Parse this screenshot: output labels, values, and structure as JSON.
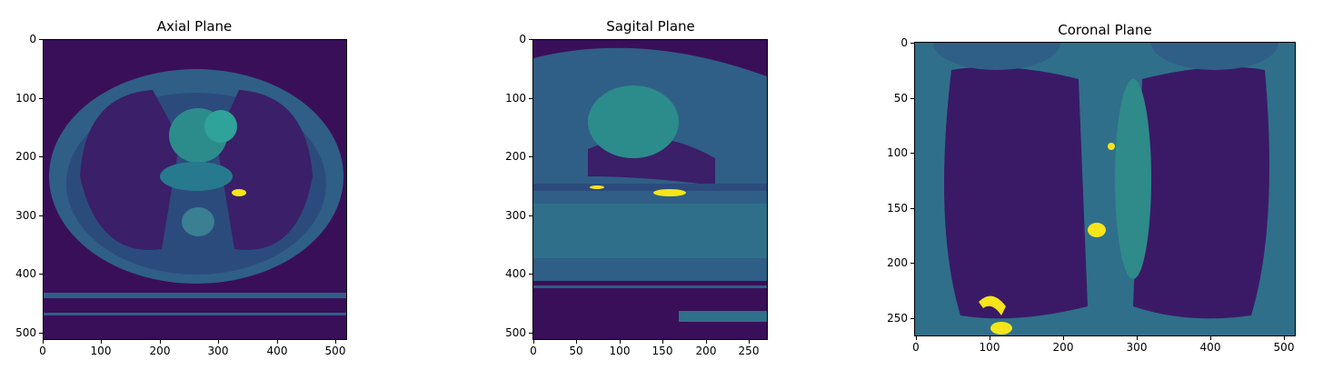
{
  "panels": [
    {
      "id": "axial",
      "title": "Axial Plane",
      "x_ticks": [
        "0",
        "100",
        "200",
        "300",
        "400",
        "500"
      ],
      "y_ticks": [
        "0",
        "100",
        "200",
        "300",
        "400",
        "500"
      ]
    },
    {
      "id": "sagittal",
      "title": "Sagital Plane",
      "x_ticks": [
        "0",
        "50",
        "100",
        "150",
        "200",
        "250"
      ],
      "y_ticks": [
        "0",
        "100",
        "200",
        "300",
        "400",
        "500"
      ]
    },
    {
      "id": "coronal",
      "title": "Coronal Plane",
      "x_ticks": [
        "0",
        "100",
        "200",
        "300",
        "400",
        "500"
      ],
      "y_ticks": [
        "0",
        "50",
        "100",
        "150",
        "200",
        "250"
      ]
    }
  ],
  "colors": {
    "background": "#3a0f59",
    "tissue": "#2f6f8a",
    "soft": "#2c8c8c",
    "bright": "#f5e51b"
  }
}
